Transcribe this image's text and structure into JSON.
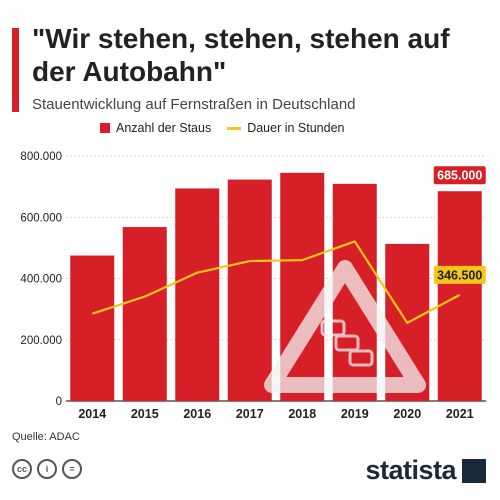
{
  "title": "\"Wir stehen, stehen, stehen auf der Autobahn\"",
  "subtitle": "Stauentwicklung auf Fernstraßen in Deutschland",
  "source": "Quelle: ADAC",
  "brand": "statista",
  "colors": {
    "accent": "#d61f26",
    "line": "#f5c518",
    "text": "#222222"
  },
  "chart_data": {
    "type": "bar",
    "categories": [
      "2014",
      "2015",
      "2016",
      "2017",
      "2018",
      "2019",
      "2020",
      "2021"
    ],
    "series": [
      {
        "name": "Anzahl der Staus",
        "type": "bar",
        "color": "#d61f26",
        "values": [
          475000,
          568000,
          694000,
          723000,
          745000,
          709000,
          513000,
          685000
        ]
      },
      {
        "name": "Dauer in Stunden",
        "type": "line",
        "color": "#f5c518",
        "values": [
          285000,
          341000,
          419000,
          457000,
          460000,
          521000,
          255000,
          346500
        ]
      }
    ],
    "ylim": [
      0,
      800000
    ],
    "yticks": [
      "0",
      "200.000",
      "400.000",
      "600.000",
      "800.000"
    ],
    "ytick_values": [
      0,
      200000,
      400000,
      600000,
      800000
    ],
    "data_labels": [
      {
        "text": "685.000",
        "series": 0,
        "index": 7
      },
      {
        "text": "346.500",
        "series": 1,
        "index": 7
      }
    ],
    "grid": true,
    "legend": "top"
  }
}
